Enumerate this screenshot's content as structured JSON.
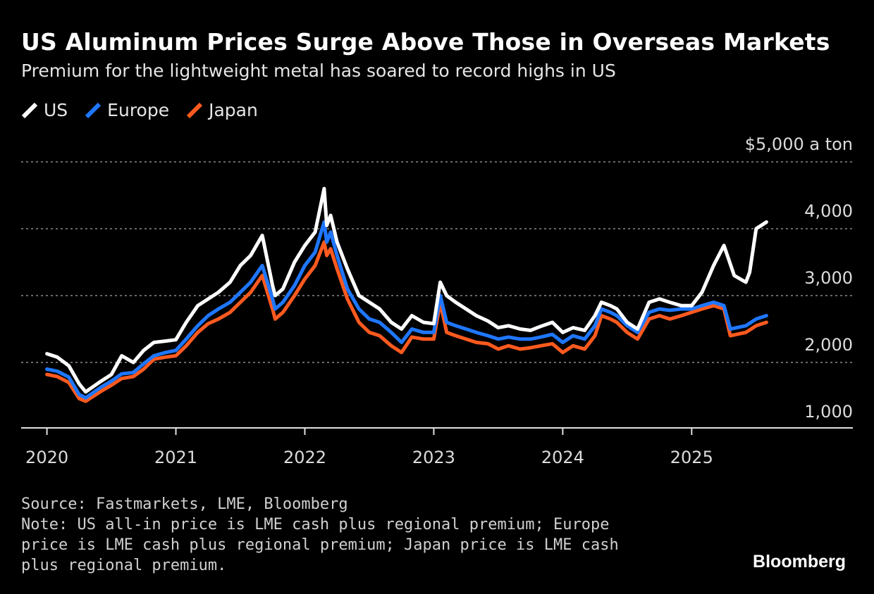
{
  "header": {
    "title": "US Aluminum Prices Surge Above Those in Overseas Markets",
    "subtitle": "Premium for the lightweight metal has soared to record highs in US"
  },
  "footer": {
    "source": "Source: Fastmarkets, LME, Bloomberg",
    "note": "Note: US all-in price is LME cash plus regional premium; Europe price is LME cash plus regional premium; Japan price is LME cash plus regional premium.",
    "brand": "Bloomberg"
  },
  "colors": {
    "background": "#000000",
    "us": "#ffffff",
    "europe": "#1f77ff",
    "japan": "#ff5a1f",
    "grid": "#8a8a8a"
  },
  "chart_data": {
    "type": "line",
    "title": "US Aluminum Prices Surge Above Those in Overseas Markets",
    "subtitle": "Premium for the lightweight metal has soared to record highs in US",
    "ylabel": "$5,000 a ton",
    "ylim": [
      1000,
      5000
    ],
    "y_ticks": [
      1000,
      2000,
      3000,
      4000,
      5000
    ],
    "y_tick_labels": [
      "1,000",
      "2,000",
      "3,000",
      "4,000",
      "$5,000 a ton"
    ],
    "x_tick_labels": [
      "2020",
      "2021",
      "2022",
      "2023",
      "2024",
      "2025"
    ],
    "x_ticks": [
      2020,
      2021,
      2022,
      2023,
      2024,
      2025
    ],
    "xlim": [
      2019.8,
      2026.25
    ],
    "grid": true,
    "legend_position": "top-left",
    "series": [
      {
        "name": "US",
        "color": "#ffffff",
        "x": [
          2020.0,
          2020.08,
          2020.17,
          2020.25,
          2020.3,
          2020.42,
          2020.5,
          2020.58,
          2020.67,
          2020.75,
          2020.83,
          2020.92,
          2021.0,
          2021.08,
          2021.17,
          2021.25,
          2021.33,
          2021.42,
          2021.5,
          2021.58,
          2021.67,
          2021.75,
          2021.77,
          2021.83,
          2021.92,
          2022.0,
          2022.08,
          2022.15,
          2022.17,
          2022.2,
          2022.25,
          2022.33,
          2022.42,
          2022.5,
          2022.58,
          2022.67,
          2022.75,
          2022.83,
          2022.92,
          2023.0,
          2023.05,
          2023.1,
          2023.17,
          2023.25,
          2023.33,
          2023.42,
          2023.5,
          2023.58,
          2023.67,
          2023.75,
          2023.83,
          2023.92,
          2024.0,
          2024.08,
          2024.17,
          2024.25,
          2024.3,
          2024.37,
          2024.42,
          2024.5,
          2024.58,
          2024.67,
          2024.75,
          2024.83,
          2024.92,
          2025.0,
          2025.08,
          2025.17,
          2025.25,
          2025.33,
          2025.42,
          2025.45,
          2025.5,
          2025.58
        ],
        "values": [
          2130,
          2080,
          1950,
          1680,
          1560,
          1720,
          1820,
          2100,
          2000,
          2180,
          2300,
          2320,
          2340,
          2600,
          2850,
          2950,
          3050,
          3200,
          3450,
          3600,
          3900,
          3150,
          3000,
          3100,
          3500,
          3750,
          3950,
          4600,
          4050,
          4200,
          3800,
          3400,
          3000,
          2900,
          2800,
          2600,
          2500,
          2700,
          2600,
          2580,
          3200,
          3000,
          2900,
          2800,
          2700,
          2620,
          2520,
          2550,
          2500,
          2480,
          2540,
          2600,
          2450,
          2520,
          2480,
          2700,
          2900,
          2850,
          2800,
          2600,
          2500,
          2900,
          2950,
          2900,
          2850,
          2850,
          3050,
          3450,
          3750,
          3300,
          3200,
          3350,
          4000,
          4100
        ]
      },
      {
        "name": "Europe",
        "color": "#1f77ff",
        "x": [
          2020.0,
          2020.08,
          2020.17,
          2020.25,
          2020.3,
          2020.42,
          2020.5,
          2020.58,
          2020.67,
          2020.75,
          2020.83,
          2020.92,
          2021.0,
          2021.08,
          2021.17,
          2021.25,
          2021.33,
          2021.42,
          2021.5,
          2021.58,
          2021.67,
          2021.75,
          2021.77,
          2021.83,
          2021.92,
          2022.0,
          2022.08,
          2022.15,
          2022.17,
          2022.2,
          2022.25,
          2022.33,
          2022.42,
          2022.5,
          2022.58,
          2022.67,
          2022.75,
          2022.83,
          2022.92,
          2023.0,
          2023.05,
          2023.1,
          2023.17,
          2023.25,
          2023.33,
          2023.42,
          2023.5,
          2023.58,
          2023.67,
          2023.75,
          2023.83,
          2023.92,
          2024.0,
          2024.08,
          2024.17,
          2024.25,
          2024.3,
          2024.37,
          2024.42,
          2024.5,
          2024.58,
          2024.67,
          2024.75,
          2024.83,
          2024.92,
          2025.0,
          2025.08,
          2025.17,
          2025.25,
          2025.3,
          2025.42,
          2025.5,
          2025.58
        ],
        "values": [
          1900,
          1870,
          1780,
          1520,
          1470,
          1630,
          1720,
          1830,
          1850,
          1980,
          2100,
          2150,
          2180,
          2350,
          2550,
          2700,
          2800,
          2900,
          3050,
          3200,
          3450,
          2950,
          2800,
          2900,
          3150,
          3450,
          3650,
          4100,
          3800,
          3950,
          3600,
          3100,
          2800,
          2650,
          2600,
          2450,
          2300,
          2500,
          2450,
          2450,
          3000,
          2600,
          2550,
          2500,
          2450,
          2400,
          2350,
          2380,
          2350,
          2350,
          2380,
          2420,
          2300,
          2400,
          2350,
          2550,
          2800,
          2750,
          2700,
          2550,
          2450,
          2750,
          2800,
          2780,
          2800,
          2800,
          2850,
          2900,
          2850,
          2500,
          2550,
          2650,
          2700
        ]
      },
      {
        "name": "Japan",
        "color": "#ff5a1f",
        "x": [
          2020.0,
          2020.08,
          2020.17,
          2020.25,
          2020.3,
          2020.42,
          2020.5,
          2020.58,
          2020.67,
          2020.75,
          2020.83,
          2020.92,
          2021.0,
          2021.08,
          2021.17,
          2021.25,
          2021.33,
          2021.42,
          2021.5,
          2021.58,
          2021.67,
          2021.75,
          2021.77,
          2021.83,
          2021.92,
          2022.0,
          2022.08,
          2022.15,
          2022.17,
          2022.2,
          2022.25,
          2022.33,
          2022.42,
          2022.5,
          2022.58,
          2022.67,
          2022.75,
          2022.83,
          2022.92,
          2023.0,
          2023.05,
          2023.1,
          2023.17,
          2023.25,
          2023.33,
          2023.42,
          2023.5,
          2023.58,
          2023.67,
          2023.75,
          2023.83,
          2023.92,
          2024.0,
          2024.08,
          2024.17,
          2024.25,
          2024.3,
          2024.37,
          2024.42,
          2024.5,
          2024.58,
          2024.67,
          2024.75,
          2024.83,
          2024.92,
          2025.0,
          2025.08,
          2025.17,
          2025.25,
          2025.3,
          2025.42,
          2025.5,
          2025.58
        ],
        "values": [
          1820,
          1790,
          1700,
          1460,
          1420,
          1570,
          1660,
          1760,
          1790,
          1900,
          2050,
          2080,
          2100,
          2250,
          2450,
          2580,
          2650,
          2750,
          2900,
          3050,
          3300,
          2800,
          2650,
          2750,
          3000,
          3250,
          3450,
          3800,
          3600,
          3700,
          3400,
          2950,
          2600,
          2450,
          2400,
          2250,
          2150,
          2380,
          2350,
          2350,
          2900,
          2450,
          2400,
          2350,
          2300,
          2280,
          2200,
          2250,
          2200,
          2220,
          2250,
          2280,
          2150,
          2250,
          2200,
          2400,
          2700,
          2650,
          2600,
          2450,
          2350,
          2650,
          2700,
          2650,
          2700,
          2750,
          2800,
          2850,
          2800,
          2400,
          2450,
          2550,
          2600
        ]
      }
    ]
  }
}
